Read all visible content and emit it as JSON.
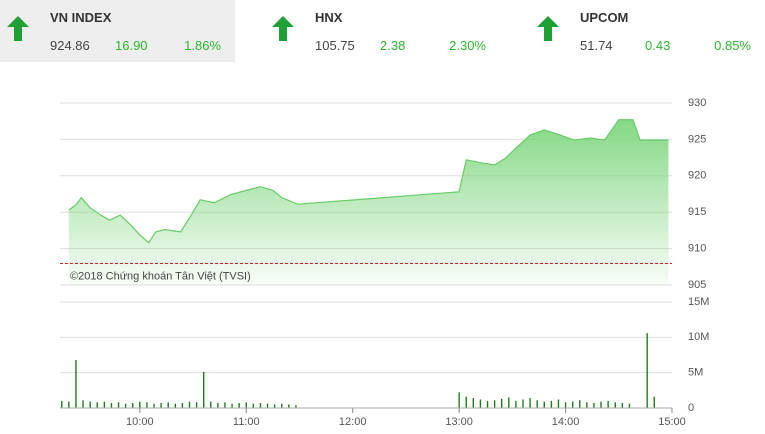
{
  "header": {
    "tiles": [
      {
        "name": "VN INDEX",
        "value": "924.86",
        "change": "16.90",
        "percent": "1.86%"
      },
      {
        "name": "HNX",
        "value": "105.75",
        "change": "2.38",
        "percent": "2.30%"
      },
      {
        "name": "UPCOM",
        "value": "51.74",
        "change": "0.43",
        "percent": "0.85%"
      }
    ]
  },
  "chart_data": [
    {
      "type": "area",
      "credit": "©2018 Chứng khoán Tân Việt (TVSI)",
      "color": "#7ed67e",
      "line_color": "#66cc66",
      "reference": 907.96,
      "reference_color": "#d62020",
      "x": [
        560,
        564,
        567,
        572,
        578,
        583,
        589,
        595,
        600,
        605,
        609,
        614,
        623,
        628,
        634,
        642,
        651,
        660,
        668,
        675,
        680,
        689,
        780,
        784,
        792,
        800,
        806,
        812,
        820,
        828,
        837,
        845,
        854,
        862,
        866,
        870,
        878,
        882,
        898
      ],
      "values": [
        915.3,
        916.0,
        917.0,
        915.6,
        914.6,
        913.9,
        914.6,
        913.2,
        911.9,
        910.8,
        912.3,
        912.6,
        912.3,
        914.2,
        916.7,
        916.3,
        917.4,
        918.0,
        918.5,
        918.0,
        917.0,
        916.1,
        917.8,
        922.2,
        921.8,
        921.5,
        922.4,
        923.8,
        925.6,
        926.3,
        925.6,
        924.9,
        925.2,
        924.9,
        926.3,
        927.7,
        927.7,
        924.9,
        924.9
      ],
      "xlim": [
        555,
        900
      ],
      "ylim": [
        905,
        930
      ],
      "yticks": [
        930,
        925,
        920,
        915,
        910,
        905
      ],
      "grid": true
    },
    {
      "type": "bar",
      "color": "#1f7a1f",
      "x": [
        556,
        560,
        564,
        568,
        572,
        576,
        580,
        584,
        588,
        592,
        596,
        600,
        604,
        608,
        612,
        616,
        620,
        624,
        628,
        632,
        636,
        640,
        644,
        648,
        652,
        656,
        660,
        664,
        668,
        672,
        676,
        680,
        684,
        688,
        780,
        784,
        788,
        792,
        796,
        800,
        804,
        808,
        812,
        816,
        820,
        824,
        828,
        832,
        836,
        840,
        844,
        848,
        852,
        856,
        860,
        864,
        868,
        872,
        876,
        886,
        890
      ],
      "values": [
        1.0,
        0.9,
        6.8,
        1.1,
        0.9,
        0.8,
        0.9,
        0.7,
        0.8,
        0.6,
        0.7,
        0.9,
        0.8,
        0.6,
        0.7,
        0.8,
        0.6,
        0.7,
        0.9,
        0.8,
        5.1,
        0.9,
        0.7,
        0.8,
        0.6,
        0.7,
        0.8,
        0.6,
        0.7,
        0.6,
        0.5,
        0.6,
        0.5,
        0.4,
        2.2,
        1.6,
        1.4,
        1.2,
        1.0,
        1.1,
        1.3,
        1.5,
        1.0,
        1.2,
        1.4,
        1.1,
        0.9,
        1.0,
        1.2,
        0.8,
        0.9,
        1.1,
        0.8,
        0.7,
        0.9,
        1.0,
        0.8,
        0.7,
        0.6,
        10.6,
        1.6
      ],
      "xlim": [
        555,
        900
      ],
      "ylim": [
        0,
        15
      ],
      "yticks": [
        {
          "value": 15,
          "label": "15M"
        },
        {
          "value": 10,
          "label": "10M"
        },
        {
          "value": 5,
          "label": "5M"
        },
        0
      ],
      "xticks": [
        {
          "value": 600,
          "label": "10:00"
        },
        {
          "value": 660,
          "label": "11:00"
        },
        {
          "value": 720,
          "label": "12:00"
        },
        {
          "value": 780,
          "label": "13:00"
        },
        {
          "value": 840,
          "label": "14:00"
        },
        {
          "value": 900,
          "label": "15:00"
        }
      ],
      "grid": true
    }
  ]
}
